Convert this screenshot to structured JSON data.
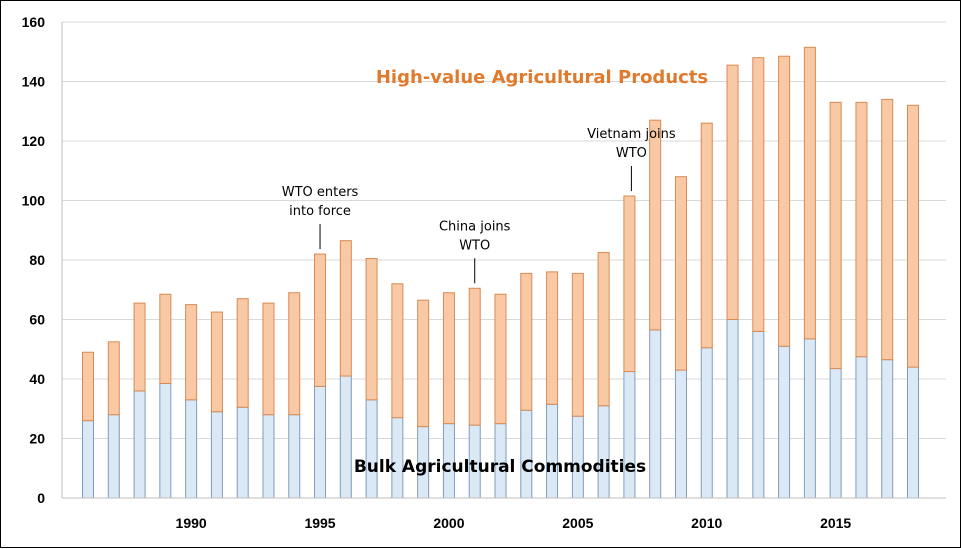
{
  "colors": {
    "bulk_fill": "#dbe9f7",
    "bulk_stroke": "#7f9db9",
    "hv_fill": "#f9c9a6",
    "hv_stroke": "#d98a52",
    "hv_label": "#e07b2e",
    "grid": "#d9d9d9"
  },
  "chart_data": {
    "type": "bar",
    "stacked": true,
    "x": [
      1986,
      1987,
      1988,
      1989,
      1990,
      1991,
      1992,
      1993,
      1994,
      1995,
      1996,
      1997,
      1998,
      1999,
      2000,
      2001,
      2002,
      2003,
      2004,
      2005,
      2006,
      2007,
      2008,
      2009,
      2010,
      2011,
      2012,
      2013,
      2014,
      2015,
      2016,
      2017,
      2018
    ],
    "series": [
      {
        "name": "Bulk Agricultural Commodities",
        "values": [
          26,
          28,
          36,
          38.5,
          33,
          29,
          30.5,
          28,
          28,
          37.5,
          41,
          33,
          27,
          24,
          25,
          24.5,
          25,
          29.5,
          31.5,
          27.5,
          31,
          42.5,
          56.5,
          43,
          50.5,
          60,
          56,
          51,
          53.5,
          43.5,
          47.5,
          46.5,
          44
        ]
      },
      {
        "name": "High-value Agricultural Products",
        "values": [
          23,
          24.5,
          29.5,
          30,
          32,
          33.5,
          36.5,
          37.5,
          41,
          44.5,
          45.5,
          47.5,
          45,
          42.5,
          44,
          46,
          43.5,
          46,
          44.5,
          48,
          51.5,
          59,
          70.5,
          65,
          75.5,
          85.5,
          92,
          97.5,
          98,
          89.5,
          85.5,
          87.5,
          88
        ]
      }
    ],
    "ylim": [
      0,
      160
    ],
    "yticks": [
      "0",
      "20",
      "40",
      "60",
      "80",
      "100",
      "120",
      "140",
      "160"
    ],
    "xticks": [
      "1990",
      "1995",
      "2000",
      "2005",
      "2010",
      "2015"
    ],
    "grid": "horizontal",
    "annotations": [
      {
        "year": 1995,
        "lines": [
          "WTO enters",
          "into force"
        ]
      },
      {
        "year": 2001,
        "lines": [
          "China joins",
          "WTO"
        ]
      },
      {
        "year": 2007,
        "lines": [
          "Vietnam joins",
          "WTO"
        ]
      }
    ],
    "labels": {
      "bulk": "Bulk Agricultural Commodities",
      "high_value": "High-value Agricultural Products"
    }
  }
}
